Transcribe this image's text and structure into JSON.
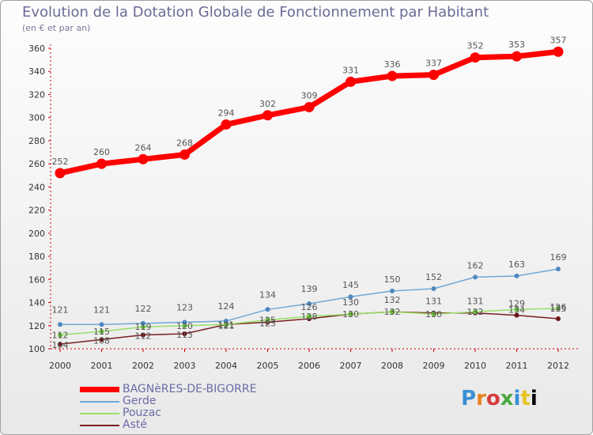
{
  "chart_data": {
    "type": "line",
    "title": "Evolution de la Dotation Globale de Fonctionnement par Habitant",
    "subtitle": "(en € et par an)",
    "xlabel": "",
    "ylabel": "",
    "x": [
      "2000",
      "2001",
      "2002",
      "2003",
      "2004",
      "2005",
      "2006",
      "2007",
      "2008",
      "2009",
      "2010",
      "2011",
      "2012"
    ],
    "ylim": [
      100,
      360
    ],
    "yticks": [
      100,
      120,
      140,
      160,
      180,
      200,
      220,
      240,
      260,
      280,
      300,
      320,
      340,
      360
    ],
    "grid": false,
    "legend_position": "bottom-left",
    "series": [
      {
        "name": "BAGNèRES-DE-BIGORRE",
        "color": "#ff0000",
        "width": 7,
        "values": [
          252,
          260,
          264,
          268,
          294,
          302,
          309,
          331,
          336,
          337,
          352,
          353,
          357
        ]
      },
      {
        "name": "Gerde",
        "color": "#6fa8d6",
        "width": 1.5,
        "values": [
          121,
          121,
          122,
          123,
          124,
          134,
          139,
          145,
          150,
          152,
          162,
          163,
          169
        ]
      },
      {
        "name": "Pouzac",
        "color": "#99e066",
        "width": 1.5,
        "values": [
          112,
          115,
          119,
          120,
          121,
          125,
          128,
          130,
          132,
          130,
          132,
          134,
          135
        ]
      },
      {
        "name": "Asté",
        "color": "#7a1f1f",
        "width": 1.5,
        "values": [
          104,
          108,
          112,
          113,
          121,
          123,
          126,
          130,
          132,
          131,
          131,
          129,
          126
        ]
      }
    ]
  },
  "logo": {
    "letters": [
      "P",
      "r",
      "o",
      "x",
      "i",
      "t",
      "i"
    ]
  }
}
